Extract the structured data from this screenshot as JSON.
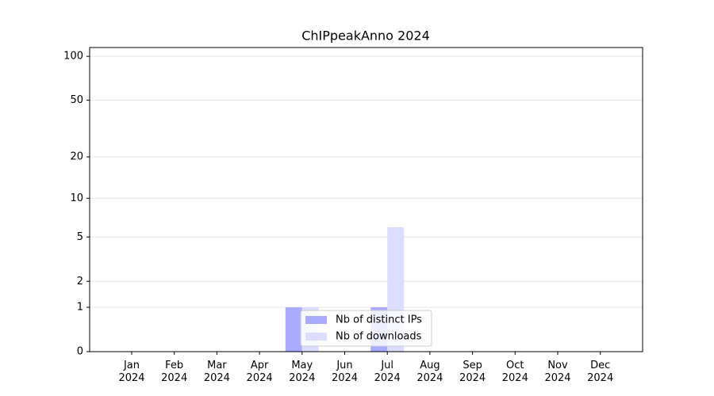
{
  "chart_data": {
    "type": "bar",
    "title": "ChIPpeakAnno 2024",
    "scale": "log1p",
    "categories": [
      "Jan 2024",
      "Feb 2024",
      "Mar 2024",
      "Apr 2024",
      "May 2024",
      "Jun 2024",
      "Jul 2024",
      "Aug 2024",
      "Sep 2024",
      "Oct 2024",
      "Nov 2024",
      "Dec 2024"
    ],
    "series": [
      {
        "name": "Nb of distinct IPs",
        "color": "#aaaaff",
        "values": [
          0,
          0,
          0,
          0,
          1,
          0,
          1,
          0,
          0,
          0,
          0,
          0
        ]
      },
      {
        "name": "Nb of downloads",
        "color": "#ddddff",
        "values": [
          0,
          0,
          0,
          0,
          1,
          0,
          6,
          0,
          0,
          0,
          0,
          0
        ]
      }
    ],
    "ylim": [
      0,
      115
    ],
    "yticks": [
      0,
      1,
      2,
      5,
      10,
      20,
      50,
      100
    ],
    "grid": true,
    "legend": "lower center"
  }
}
